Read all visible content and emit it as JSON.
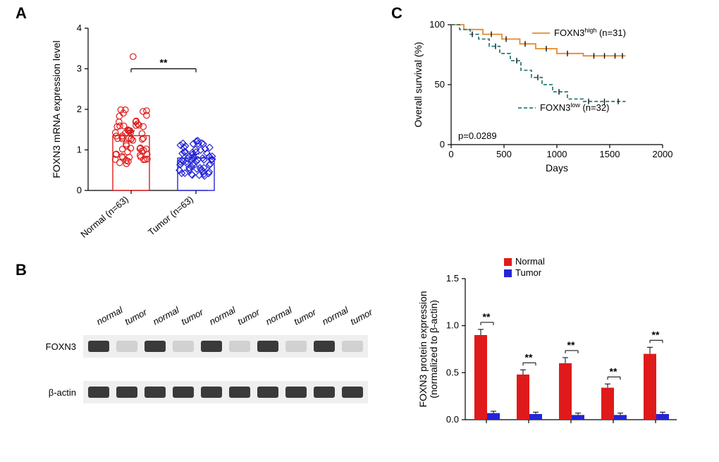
{
  "panelA": {
    "label": "A",
    "y_title": "FOXN3 mRNA expression level",
    "x_labels": [
      "Normal (n=63)",
      "Tumor (n=63)"
    ],
    "ylim": [
      0,
      4
    ],
    "yticks": [
      0,
      1,
      2,
      3,
      4
    ],
    "bars": [
      {
        "x": 0,
        "mean": 1.35,
        "err": 0.12,
        "stroke": "#e01a1a",
        "fill": "#ffffff"
      },
      {
        "x": 1,
        "mean": 0.8,
        "err": 0.1,
        "stroke": "#2424d8",
        "fill": "#ffffff"
      }
    ],
    "marker_size": 4.2,
    "n_points": 63,
    "sig_label": "**",
    "sig_y": 3.0,
    "colors": {
      "normal": "#e01a1a",
      "tumor": "#2424d8"
    }
  },
  "panelB": {
    "label": "B",
    "row1_name": "FOXN3",
    "row2_name": "β-actin",
    "lane_labels": [
      "normal",
      "tumor",
      "normal",
      "tumor",
      "normal",
      "tumor",
      "normal",
      "tumor",
      "normal",
      "tumor"
    ],
    "n_pairs": 5,
    "band_color": "#2f2f2f",
    "faint_color": "#9a9a9a",
    "bg": "#efefef"
  },
  "panelC": {
    "label": "C",
    "y_title": "Overall survival (%)",
    "x_title": "Days",
    "xlim": [
      0,
      2000
    ],
    "xticks": [
      0,
      500,
      1000,
      1500,
      2000
    ],
    "ylim": [
      0,
      100
    ],
    "yticks": [
      0,
      50,
      100
    ],
    "p_label": "p=0.0289",
    "legend": [
      {
        "text_a": "FOXN3",
        "sup": "high",
        "text_b": " (n=31)",
        "color": "#e58a2e",
        "dash": false
      },
      {
        "text_a": "FOXN3",
        "sup": "low",
        "text_b": " (n=32)",
        "color": "#2f7d7d",
        "dash": true
      }
    ],
    "curve_high": [
      [
        0,
        100
      ],
      [
        120,
        100
      ],
      [
        120,
        96
      ],
      [
        300,
        96
      ],
      [
        300,
        92
      ],
      [
        480,
        92
      ],
      [
        480,
        88
      ],
      [
        650,
        88
      ],
      [
        650,
        84
      ],
      [
        800,
        84
      ],
      [
        800,
        80
      ],
      [
        1000,
        80
      ],
      [
        1000,
        76
      ],
      [
        1250,
        76
      ],
      [
        1250,
        74
      ],
      [
        1650,
        74
      ]
    ],
    "curve_low": [
      [
        0,
        100
      ],
      [
        80,
        100
      ],
      [
        80,
        96
      ],
      [
        180,
        96
      ],
      [
        180,
        92
      ],
      [
        260,
        92
      ],
      [
        260,
        88
      ],
      [
        360,
        88
      ],
      [
        360,
        82
      ],
      [
        460,
        82
      ],
      [
        460,
        76
      ],
      [
        560,
        76
      ],
      [
        560,
        70
      ],
      [
        660,
        70
      ],
      [
        660,
        62
      ],
      [
        760,
        62
      ],
      [
        760,
        56
      ],
      [
        860,
        56
      ],
      [
        860,
        50
      ],
      [
        960,
        50
      ],
      [
        960,
        44
      ],
      [
        1100,
        44
      ],
      [
        1100,
        38
      ],
      [
        1250,
        38
      ],
      [
        1250,
        36
      ],
      [
        1650,
        36
      ]
    ],
    "ticks_high": [
      [
        380,
        92
      ],
      [
        520,
        88
      ],
      [
        700,
        84
      ],
      [
        900,
        80
      ],
      [
        1100,
        76
      ],
      [
        1350,
        74
      ],
      [
        1450,
        74
      ],
      [
        1550,
        74
      ],
      [
        1620,
        74
      ]
    ],
    "ticks_low": [
      [
        200,
        92
      ],
      [
        420,
        82
      ],
      [
        620,
        70
      ],
      [
        820,
        56
      ],
      [
        1020,
        44
      ],
      [
        1300,
        36
      ],
      [
        1450,
        36
      ],
      [
        1580,
        36
      ]
    ]
  },
  "panelD": {
    "y_title_line1": "FOXN3 protein expression",
    "y_title_line2": "(normalized to β-actin)",
    "ylim": [
      0,
      1.5
    ],
    "yticks": [
      0,
      0.5,
      1.0,
      1.5
    ],
    "legend": [
      {
        "label": "Normal",
        "color": "#e01a1a"
      },
      {
        "label": "Tumor",
        "color": "#2424d8"
      }
    ],
    "pairs": [
      {
        "normal": 0.9,
        "n_err": 0.06,
        "tumor": 0.07,
        "t_err": 0.02
      },
      {
        "normal": 0.48,
        "n_err": 0.05,
        "tumor": 0.06,
        "t_err": 0.02
      },
      {
        "normal": 0.6,
        "n_err": 0.06,
        "tumor": 0.05,
        "t_err": 0.02
      },
      {
        "normal": 0.34,
        "n_err": 0.04,
        "tumor": 0.05,
        "t_err": 0.02
      },
      {
        "normal": 0.7,
        "n_err": 0.07,
        "tumor": 0.06,
        "t_err": 0.02
      }
    ],
    "sig": "**",
    "bar_colors": {
      "normal": "#e01a1a",
      "tumor": "#2424d8"
    }
  }
}
